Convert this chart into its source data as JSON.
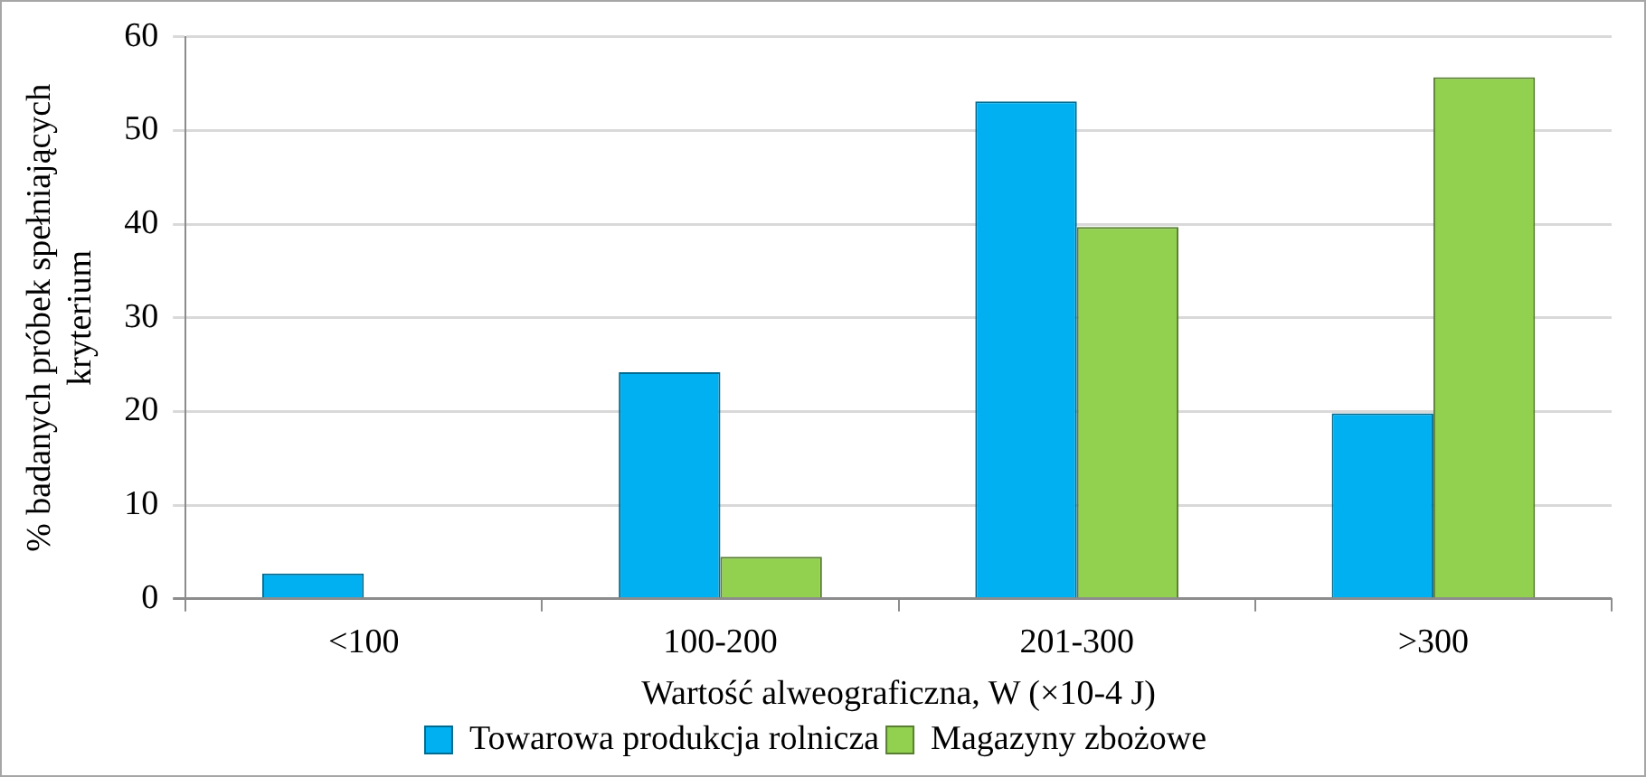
{
  "chart_data": {
    "type": "bar",
    "xlabel": "Wartość alweograficzna, W (×10-4 J)",
    "ylabel": "% badanych próbek spełniających kryterium",
    "categories": [
      "<100",
      "100-200",
      "201-300",
      ">300"
    ],
    "series": [
      {
        "name": "Towarowa produkcja rolnicza",
        "color": "#00b0f0",
        "values": [
          2.7,
          24.2,
          53.1,
          19.8
        ]
      },
      {
        "name": "Magazyny zbożowe",
        "color": "#92d050",
        "values": [
          0,
          4.5,
          39.7,
          55.7
        ]
      }
    ],
    "ylim": [
      0,
      60
    ],
    "yticks": [
      0,
      10,
      20,
      30,
      40,
      50,
      60
    ],
    "grid": "y",
    "legend": "bottom"
  }
}
